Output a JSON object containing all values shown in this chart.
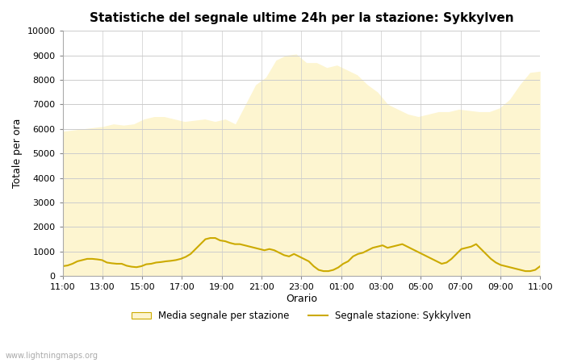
{
  "title": "Statistiche del segnale ultime 24h per la stazione: Sykkylven",
  "xlabel": "Orario",
  "ylabel": "Totale per ora",
  "xlim": [
    0,
    24
  ],
  "ylim": [
    0,
    10000
  ],
  "yticks": [
    0,
    1000,
    2000,
    3000,
    4000,
    5000,
    6000,
    7000,
    8000,
    9000,
    10000
  ],
  "xtick_labels": [
    "11:00",
    "13:00",
    "15:00",
    "17:00",
    "19:00",
    "21:00",
    "23:00",
    "01:00",
    "03:00",
    "05:00",
    "07:00",
    "09:00",
    "11:00"
  ],
  "xtick_positions": [
    0,
    2,
    4,
    6,
    8,
    10,
    12,
    14,
    16,
    18,
    20,
    22,
    24
  ],
  "background_color": "#ffffff",
  "plot_bg_color": "#ffffff",
  "fill_color": "#fdf5d0",
  "fill_edge_color": "#fdf5d0",
  "line_color": "#ccaa00",
  "line_width": 1.5,
  "watermark": "www.lightningmaps.org",
  "legend_fill_label": "Media segnale per stazione",
  "legend_line_label": "Segnale stazione: Sykkylven",
  "avg_signal": [
    5900,
    5950,
    6000,
    6050,
    6100,
    6200,
    6150,
    6200,
    6400,
    6500,
    6500,
    6400,
    6300,
    6350,
    6400,
    6300,
    6400,
    6200,
    7000,
    7800,
    8100,
    8800,
    9000,
    9050,
    8700,
    8700,
    8500,
    8600,
    8400,
    8200,
    7800,
    7500,
    7000,
    6800,
    6600,
    6500,
    6600,
    6700,
    6700,
    6800,
    6750,
    6700,
    6700,
    6850,
    7200,
    7800,
    8300,
    8350
  ],
  "station_signal": [
    400,
    430,
    500,
    600,
    650,
    700,
    700,
    680,
    650,
    550,
    520,
    500,
    500,
    420,
    380,
    360,
    400,
    480,
    500,
    550,
    570,
    600,
    620,
    650,
    700,
    780,
    900,
    1100,
    1300,
    1500,
    1550,
    1550,
    1450,
    1420,
    1350,
    1300,
    1300,
    1250,
    1200,
    1150,
    1100,
    1050,
    1100,
    1050,
    950,
    850,
    800,
    900,
    800,
    700,
    600,
    400,
    250,
    200,
    200,
    250,
    350,
    500,
    600,
    800,
    900,
    950,
    1050,
    1150,
    1200,
    1250,
    1150,
    1200,
    1250,
    1300,
    1200,
    1100,
    1000,
    900,
    800,
    700,
    600,
    500,
    550,
    700,
    900,
    1100,
    1150,
    1200,
    1300,
    1100,
    900,
    700,
    550,
    450,
    400,
    350,
    300,
    250,
    200,
    200,
    250,
    400
  ]
}
